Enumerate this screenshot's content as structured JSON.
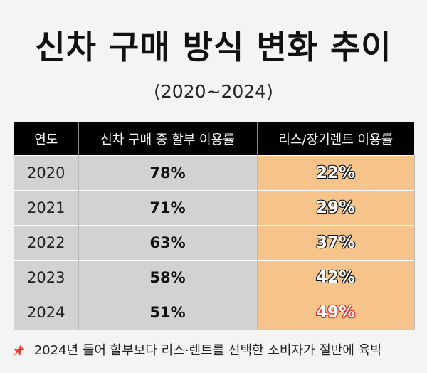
{
  "header": {
    "title": "신차 구매 방식 변화 추이",
    "subtitle": "(2020~2024)"
  },
  "table": {
    "columns": [
      "연도",
      "신차 구매 중 할부 이용률",
      "리스/장기렌트 이용률"
    ],
    "rows": [
      {
        "year": "2020",
        "loan": "78%",
        "lease": "22%"
      },
      {
        "year": "2021",
        "loan": "71%",
        "lease": "29%"
      },
      {
        "year": "2022",
        "loan": "63%",
        "lease": "37%"
      },
      {
        "year": "2023",
        "loan": "58%",
        "lease": "42%"
      },
      {
        "year": "2024",
        "loan": "51%",
        "lease": "49%"
      }
    ],
    "highlight_color": "#e8241c",
    "lease_bg": "#f6c48a",
    "loan_bg": "#d2d2d2"
  },
  "footer": {
    "icon": "pushpin-icon",
    "prefix": "2024년 들어 할부보다 ",
    "emphasis": "리스·렌트를 선택한 소비자가 절반에 육박"
  }
}
